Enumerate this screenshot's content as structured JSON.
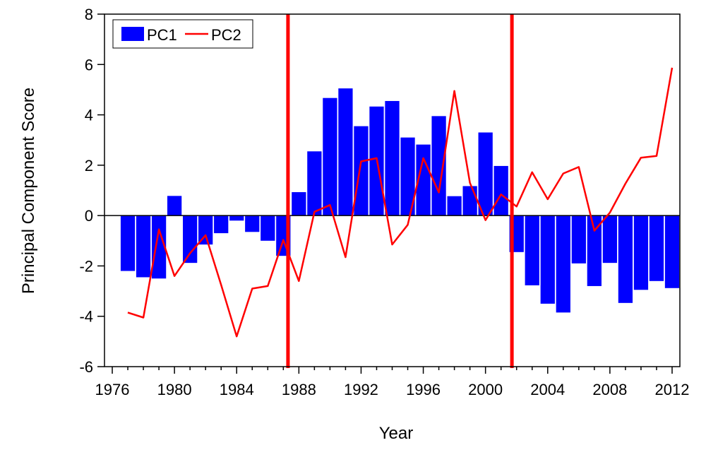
{
  "chart_data": {
    "type": "bar",
    "xlabel": "Year",
    "ylabel": "Principal Component Score",
    "xlim": [
      1975.5,
      2012.5
    ],
    "ylim": [
      -6,
      8
    ],
    "xticks": [
      1976,
      1980,
      1984,
      1988,
      1992,
      1996,
      2000,
      2004,
      2008,
      2012
    ],
    "yticks": [
      -6,
      -4,
      -2,
      0,
      2,
      4,
      6,
      8
    ],
    "grid": false,
    "legend_position": "top-left",
    "x": [
      1977,
      1978,
      1979,
      1980,
      1981,
      1982,
      1983,
      1984,
      1985,
      1986,
      1987,
      1988,
      1989,
      1990,
      1991,
      1992,
      1993,
      1994,
      1995,
      1996,
      1997,
      1998,
      1999,
      2000,
      2001,
      2002,
      2003,
      2004,
      2005,
      2006,
      2007,
      2008,
      2009,
      2010,
      2011,
      2012
    ],
    "series": [
      {
        "name": "PC1",
        "kind": "bar",
        "color": "#0000ff",
        "values": [
          -2.2,
          -2.45,
          -2.5,
          0.78,
          -1.88,
          -1.15,
          -0.7,
          -0.2,
          -0.65,
          -1.0,
          -1.6,
          0.93,
          2.55,
          4.67,
          5.05,
          3.55,
          4.33,
          4.55,
          3.1,
          2.82,
          3.95,
          0.77,
          1.17,
          3.3,
          1.97,
          -1.45,
          -2.77,
          -3.5,
          -3.85,
          -1.9,
          -2.8,
          -1.88,
          -3.47,
          -2.95,
          -2.6,
          -2.88
        ]
      },
      {
        "name": "PC2",
        "kind": "line",
        "color": "#ff0000",
        "values": [
          -3.85,
          -4.05,
          -0.55,
          -2.4,
          -1.5,
          -0.78,
          -2.75,
          -4.8,
          -2.9,
          -2.8,
          -0.97,
          -2.6,
          0.15,
          0.42,
          -1.65,
          2.15,
          2.28,
          -1.15,
          -0.37,
          2.28,
          0.92,
          4.95,
          1.3,
          -0.18,
          0.84,
          0.36,
          1.72,
          0.65,
          1.67,
          1.93,
          -0.6,
          0.12,
          1.27,
          2.3,
          2.37,
          5.87
        ]
      }
    ],
    "vertical_lines": [
      {
        "x": 1987.3,
        "color": "#ff0000"
      },
      {
        "x": 2001.7,
        "color": "#ff0000"
      }
    ]
  }
}
